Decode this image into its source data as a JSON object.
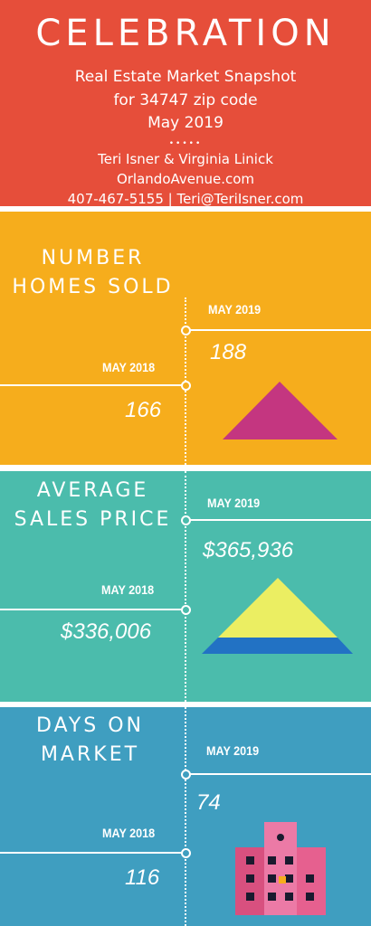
{
  "header": {
    "title": "CELEBRATION",
    "subtitle1": "Real Estate Market Snapshot",
    "subtitle2": "for 34747 zip code",
    "subtitle3": "May 2019",
    "dots": "•••••",
    "agents": "Teri Isner & Virginia Linick",
    "website": "OrlandoAvenue.com",
    "contact": "407-467-5155 | Teri@TeriIsner.com"
  },
  "sections": {
    "homes_sold": {
      "title_line1": "NUMBER",
      "title_line2": "HOMES SOLD",
      "label_2019": "MAY 2019",
      "value_2019": "188",
      "label_2018": "MAY 2018",
      "value_2018": "166"
    },
    "avg_price": {
      "title_line1": "AVERAGE",
      "title_line2": "SALES PRICE",
      "label_2019": "MAY 2019",
      "value_2019": "$365,936",
      "label_2018": "MAY 2018",
      "value_2018": "$336,006"
    },
    "days_on_market": {
      "title_line1": "DAYS ON",
      "title_line2": "MARKET",
      "label_2019": "MAY 2019",
      "value_2019": "74",
      "label_2018": "MAY 2018",
      "value_2018": "116"
    }
  },
  "colors": {
    "header": "#e64e3a",
    "section1": "#f6ad1c",
    "section2": "#4bbcac",
    "section3": "#3f9ec0",
    "triangle_magenta": "#c43680",
    "pyramid_yellow": "#ebee62",
    "pyramid_blue": "#2272c4",
    "building_pink": "#e6608f",
    "window_dark": "#1a1a2e",
    "window_orange": "#f6ad1c"
  },
  "icons": [
    "triangle-icon",
    "pyramid-icon",
    "building-icon"
  ]
}
